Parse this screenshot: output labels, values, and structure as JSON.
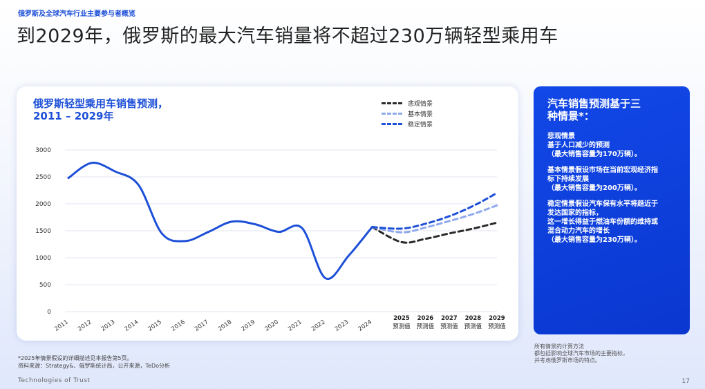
{
  "header": {
    "breadcrumb": "俄罗斯及全球汽车行业主要参与者概览",
    "title": "到2029年，俄罗斯的最大汽车销量将不超过230万辆轻型乘用车"
  },
  "chart_data": {
    "type": "line",
    "title_line1": "俄罗斯轻型乘用车销售预测，",
    "title_line2": "2011 – 2029年",
    "yticks": [
      0,
      500,
      1000,
      1500,
      2000,
      2500,
      3000
    ],
    "ylim": [
      0,
      3000
    ],
    "grid": true,
    "legend_position": "top-right",
    "historical": {
      "x": [
        "2011",
        "2012",
        "2013",
        "2014",
        "2015",
        "2016",
        "2017",
        "2018",
        "2019",
        "2020",
        "2021",
        "2022",
        "2023",
        "2024"
      ],
      "values": [
        2480,
        2760,
        2600,
        2350,
        1450,
        1310,
        1480,
        1670,
        1620,
        1480,
        1550,
        620,
        1040,
        1570
      ]
    },
    "forecast_x": [
      "2025",
      "2026",
      "2027",
      "2028",
      "2029"
    ],
    "forecast_suffix": "预测值",
    "series": [
      {
        "name": "悲观情景",
        "color": "#2b2b2b",
        "values": [
          1570,
          1290,
          1350,
          1450,
          1540,
          1650
        ]
      },
      {
        "name": "基本情景",
        "color": "#8fa9ec",
        "values": [
          1570,
          1470,
          1560,
          1680,
          1810,
          1970
        ]
      },
      {
        "name": "稳定情景",
        "color": "#1d4fd8",
        "values": [
          1570,
          1540,
          1630,
          1770,
          1960,
          2200
        ]
      }
    ],
    "line_color": "#1d4fd8"
  },
  "panel": {
    "title_line1": "汽车销售预测基于三",
    "title_line2": "种情景*：",
    "b1": [
      "悲观情景",
      "基于人口减少的预测",
      "（最大销售容量为170万辆）。"
    ],
    "b2": [
      "基本情景假设市场在当前宏观经济指",
      "标下持续发展",
      "（最大销售容量为200万辆）。"
    ],
    "b3": [
      "稳定情景假设汽车保有水平将趋近于",
      "发达国家的指标，",
      "这一增长得益于燃油车份额的维持或",
      "混合动力汽车的增长",
      "（最大销售容量为230万辆）。"
    ]
  },
  "panel_note": [
    "所有情景的计算方法",
    "都包括影响全球汽车市场的主要指标，",
    "并考虑俄罗斯市场的特点。"
  ],
  "footnote": [
    "*2025年情景假设的详细描述见本报告第5页。",
    "资料来源：Strategy&、俄罗斯统计局，公开来源，TeDo分析"
  ],
  "footer": {
    "brand": "Technologies of Trust",
    "page": "17"
  }
}
